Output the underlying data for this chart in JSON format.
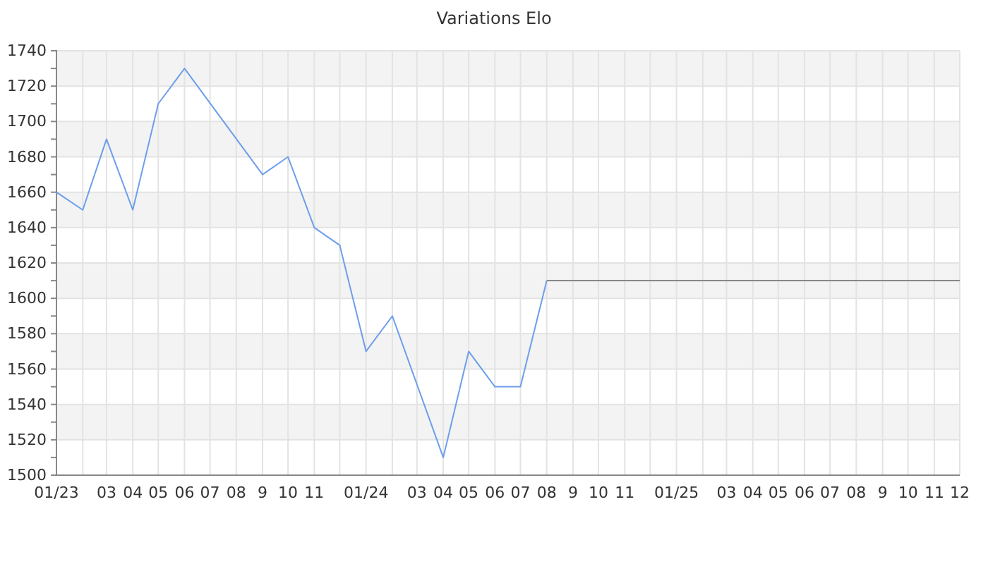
{
  "chart_data": {
    "type": "line",
    "title": "Variations Elo",
    "xlim": [
      "2023-01",
      "2025-12"
    ],
    "xticks": [
      {
        "value": "2023-01",
        "label": "01/23"
      },
      {
        "value": "2023-02",
        "label": null
      },
      {
        "value": "2023-03",
        "label": "03"
      },
      {
        "value": "2023-04",
        "label": "04"
      },
      {
        "value": "2023-05",
        "label": "05"
      },
      {
        "value": "2023-06",
        "label": "06"
      },
      {
        "value": "2023-07",
        "label": "07"
      },
      {
        "value": "2023-08",
        "label": "08"
      },
      {
        "value": "2023-09",
        "label": "9"
      },
      {
        "value": "2023-10",
        "label": "10"
      },
      {
        "value": "2023-11",
        "label": "11"
      },
      {
        "value": "2023-12",
        "label": null
      },
      {
        "value": "2024-01",
        "label": "01/24"
      },
      {
        "value": "2024-02",
        "label": null
      },
      {
        "value": "2024-03",
        "label": "03"
      },
      {
        "value": "2024-04",
        "label": "04"
      },
      {
        "value": "2024-05",
        "label": "05"
      },
      {
        "value": "2024-06",
        "label": "06"
      },
      {
        "value": "2024-07",
        "label": "07"
      },
      {
        "value": "2024-08",
        "label": "08"
      },
      {
        "value": "2024-09",
        "label": "9"
      },
      {
        "value": "2024-10",
        "label": "10"
      },
      {
        "value": "2024-11",
        "label": "11"
      },
      {
        "value": "2024-12",
        "label": null
      },
      {
        "value": "2025-01",
        "label": "01/25"
      },
      {
        "value": "2025-02",
        "label": null
      },
      {
        "value": "2025-03",
        "label": "03"
      },
      {
        "value": "2025-04",
        "label": "04"
      },
      {
        "value": "2025-05",
        "label": "05"
      },
      {
        "value": "2025-06",
        "label": "06"
      },
      {
        "value": "2025-07",
        "label": "07"
      },
      {
        "value": "2025-08",
        "label": "08"
      },
      {
        "value": "2025-09",
        "label": "9"
      },
      {
        "value": "2025-10",
        "label": "10"
      },
      {
        "value": "2025-11",
        "label": "11"
      },
      {
        "value": "2025-12",
        "label": "12"
      }
    ],
    "ylim": [
      1500,
      1740
    ],
    "yticks": [
      1500,
      {
        "value": 1510,
        "label": null
      },
      1520,
      {
        "value": 1530,
        "label": null
      },
      1540,
      {
        "value": 1550,
        "label": null
      },
      1560,
      {
        "value": 1570,
        "label": null
      },
      1580,
      {
        "value": 1590,
        "label": null
      },
      1600,
      {
        "value": 1610,
        "label": null
      },
      1620,
      {
        "value": 1630,
        "label": null
      },
      1640,
      {
        "value": 1650,
        "label": null
      },
      1660,
      {
        "value": 1670,
        "label": null
      },
      1680,
      {
        "value": 1690,
        "label": null
      },
      1700,
      {
        "value": 1710,
        "label": null
      },
      1720,
      {
        "value": 1730,
        "label": null
      },
      1740
    ],
    "grid": true,
    "marker": "none",
    "line_style": "solid",
    "series": [
      {
        "color": "#6d9eeb",
        "x": [
          "2023-01",
          "2023-02",
          "2023-03",
          "2023-04",
          "2023-05",
          "2023-06",
          "2023-09",
          "2023-10",
          "2023-11",
          "2023-12",
          "2024-01",
          "2024-02",
          "2024-04",
          "2024-05",
          "2024-06",
          "2024-07",
          "2024-08"
        ],
        "values": [
          1660,
          1650,
          1690,
          1650,
          1710,
          1730,
          1670,
          1680,
          1640,
          1630,
          1570,
          1590,
          1510,
          1570,
          1550,
          1550,
          1610
        ]
      },
      {
        "color": "#888888",
        "x": [
          "2024-08",
          "2025-12"
        ],
        "values": [
          1610,
          1610
        ]
      }
    ]
  }
}
